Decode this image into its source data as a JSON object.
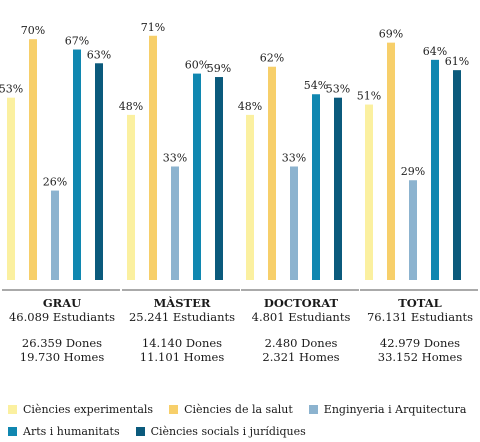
{
  "chart_data": {
    "type": "bar",
    "categories": [
      "GRAU",
      "MÀSTER",
      "DOCTORAT",
      "TOTAL"
    ],
    "value_suffix": "%",
    "ylim": [
      0,
      75
    ],
    "series": [
      {
        "name": "Ciències experimentals",
        "color": "#fbf0a0",
        "values": [
          53,
          48,
          48,
          51
        ]
      },
      {
        "name": "Ciències de la salut",
        "color": "#f7cf6a",
        "values": [
          70,
          71,
          62,
          69
        ]
      },
      {
        "name": "Enginyeria i Arquitectura",
        "color": "#8cb3cf",
        "values": [
          26,
          33,
          33,
          29
        ]
      },
      {
        "name": "Arts i humanitats",
        "color": "#1087b0",
        "values": [
          67,
          60,
          54,
          64
        ]
      },
      {
        "name": "Ciències socials i jurídiques",
        "color": "#0b5a7c",
        "values": [
          63,
          59,
          53,
          61
        ]
      }
    ]
  },
  "groups": [
    {
      "name": "GRAU",
      "students": "46.089 Estudiants",
      "women": "26.359 Dones",
      "men": "19.730 Homes"
    },
    {
      "name": "MÀSTER",
      "students": "25.241 Estudiants",
      "women": "14.140 Dones",
      "men": "11.101 Homes"
    },
    {
      "name": "DOCTORAT",
      "students": "4.801 Estudiants",
      "women": "2.480 Dones",
      "men": "2.321 Homes"
    },
    {
      "name": "TOTAL",
      "students": "76.131 Estudiants",
      "women": "42.979 Dones",
      "men": "33.152 Homes"
    }
  ],
  "legend": [
    "Ciències experimentals",
    "Ciències de la salut",
    "Enginyeria i Arquitectura",
    "Arts i humanitats",
    "Ciències socials i jurídiques"
  ]
}
